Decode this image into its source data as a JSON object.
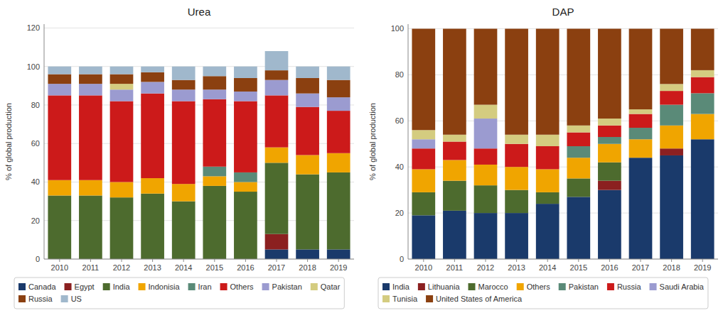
{
  "chart_data": [
    {
      "type": "bar",
      "stacked": true,
      "title": "Urea",
      "y_label": "% of global production",
      "categories": [
        2010,
        2011,
        2012,
        2013,
        2014,
        2015,
        2016,
        2017,
        2018,
        2019
      ],
      "series": [
        {
          "name": "Canada",
          "color": "#1a3a6b",
          "values": [
            0,
            0,
            0,
            0,
            0,
            0,
            0,
            5,
            5,
            5
          ]
        },
        {
          "name": "Egypt",
          "color": "#8b2020",
          "values": [
            0,
            0,
            0,
            0,
            0,
            0,
            0,
            8,
            0,
            0
          ]
        },
        {
          "name": "India",
          "color": "#4d6b2e",
          "values": [
            33,
            33,
            32,
            34,
            30,
            38,
            35,
            37,
            39,
            40
          ]
        },
        {
          "name": "Indonisia",
          "color": "#f0a500",
          "values": [
            8,
            8,
            8,
            8,
            9,
            5,
            5,
            8,
            10,
            10
          ]
        },
        {
          "name": "Iran",
          "color": "#5a8a78",
          "values": [
            0,
            0,
            0,
            0,
            0,
            5,
            5,
            0,
            0,
            0
          ]
        },
        {
          "name": "Others",
          "color": "#cc1a1a",
          "values": [
            44,
            44,
            42,
            44,
            43,
            35,
            37,
            27,
            25,
            22
          ]
        },
        {
          "name": "Pakistan",
          "color": "#9b9bd0",
          "values": [
            6,
            6,
            6,
            6,
            6,
            5,
            5,
            8,
            7,
            7
          ]
        },
        {
          "name": "Qatar",
          "color": "#d4cc80",
          "values": [
            0,
            0,
            3,
            0,
            0,
            0,
            0,
            0,
            0,
            0
          ]
        },
        {
          "name": "Russia",
          "color": "#8b4010",
          "values": [
            5,
            5,
            5,
            5,
            5,
            7,
            7,
            5,
            8,
            9
          ]
        },
        {
          "name": "US",
          "color": "#a0b8cc",
          "values": [
            4,
            4,
            4,
            3,
            7,
            5,
            6,
            10,
            6,
            7
          ]
        }
      ],
      "ylim": [
        0,
        122
      ],
      "yticks": [
        0,
        20,
        40,
        60,
        80,
        100,
        120
      ],
      "grid": true,
      "legend": "bottom"
    },
    {
      "type": "bar",
      "stacked": true,
      "title": "DAP",
      "y_label": "% of global production",
      "categories": [
        2010,
        2011,
        2012,
        2013,
        2014,
        2015,
        2016,
        2017,
        2018,
        2019
      ],
      "series": [
        {
          "name": "India",
          "color": "#1a3a6b",
          "values": [
            19,
            21,
            20,
            20,
            24,
            27,
            30,
            44,
            45,
            52
          ]
        },
        {
          "name": "Lithuania",
          "color": "#8b2020",
          "values": [
            0,
            0,
            0,
            0,
            0,
            0,
            4,
            0,
            3,
            0
          ]
        },
        {
          "name": "Marocco",
          "color": "#4d6b2e",
          "values": [
            10,
            13,
            12,
            10,
            5,
            8,
            8,
            0,
            0,
            0
          ]
        },
        {
          "name": "Others",
          "color": "#f0a500",
          "values": [
            10,
            9,
            9,
            10,
            10,
            9,
            8,
            8,
            10,
            11
          ]
        },
        {
          "name": "Pakistan",
          "color": "#5a8a78",
          "values": [
            0,
            0,
            0,
            0,
            0,
            5,
            3,
            5,
            9,
            9
          ]
        },
        {
          "name": "Russia",
          "color": "#cc1a1a",
          "values": [
            9,
            8,
            7,
            10,
            10,
            6,
            5,
            6,
            6,
            7
          ]
        },
        {
          "name": "Saudi Arabia",
          "color": "#9b9bd0",
          "values": [
            4,
            0,
            13,
            0,
            0,
            0,
            0,
            0,
            0,
            0
          ]
        },
        {
          "name": "Tunisia",
          "color": "#d4cc80",
          "values": [
            4,
            3,
            6,
            4,
            5,
            3,
            3,
            2,
            3,
            3
          ]
        },
        {
          "name": "United States of America",
          "color": "#8b4010",
          "values": [
            44,
            46,
            33,
            46,
            46,
            42,
            39,
            35,
            24,
            18
          ]
        }
      ],
      "ylim": [
        0,
        102
      ],
      "yticks": [
        0,
        20,
        40,
        60,
        80,
        100
      ],
      "grid": true,
      "legend": "bottom"
    }
  ]
}
